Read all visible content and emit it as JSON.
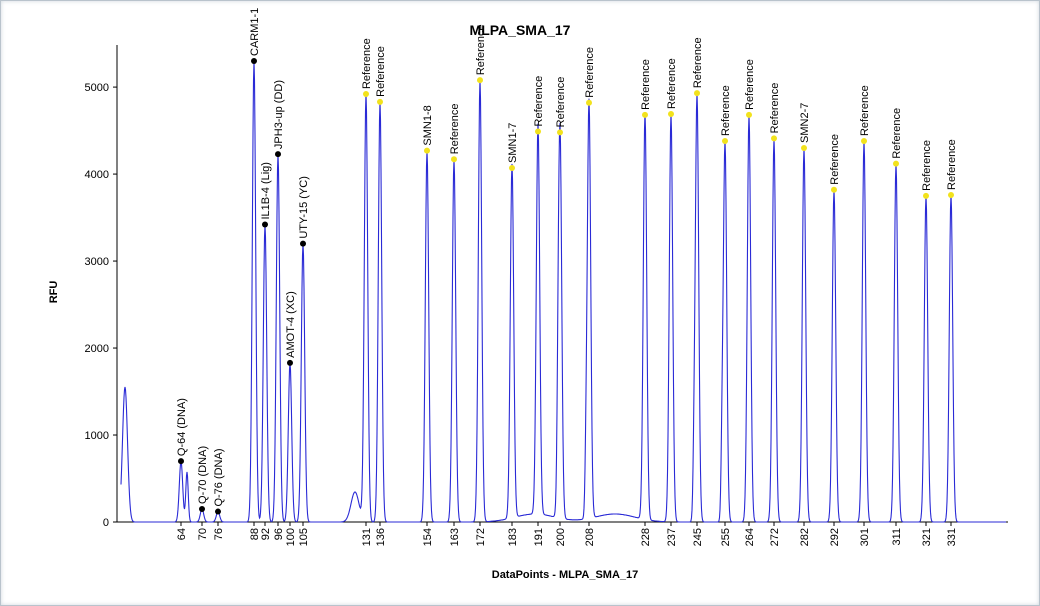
{
  "chart_data": {
    "type": "line",
    "title": "MLPA_SMA_17",
    "xlabel": "DataPoints - MLPA_SMA_17",
    "ylabel": "RFU",
    "ylim": [
      0,
      5300
    ],
    "yticks": [
      0,
      1000,
      2000,
      3000,
      4000,
      5000
    ],
    "grid": false,
    "legend": "none",
    "colors": {
      "trace": "#2a2ad6",
      "sample_marker": "#000000",
      "reference_marker": "#f2e21c",
      "axis": "#000000"
    },
    "peaks": [
      {
        "x_label": "64",
        "label": "Q-64 (DNA)",
        "rfu": 700,
        "marker": "sample"
      },
      {
        "x_label": "70",
        "label": "Q-70 (DNA)",
        "rfu": 150,
        "marker": "sample"
      },
      {
        "x_label": "76",
        "label": "Q-76 (DNA)",
        "rfu": 120,
        "marker": "sample"
      },
      {
        "x_label": "88",
        "label": "CARM1-1",
        "rfu": 5300,
        "marker": "sample"
      },
      {
        "x_label": "92",
        "label": "IL1B-4 (Lig)",
        "rfu": 3420,
        "marker": "sample"
      },
      {
        "x_label": "96",
        "label": "JPH3-up (DD)",
        "rfu": 4230,
        "marker": "sample"
      },
      {
        "x_label": "100",
        "label": "AMOT-4 (XC)",
        "rfu": 1830,
        "marker": "sample"
      },
      {
        "x_label": "105",
        "label": "UTY-15 (YC)",
        "rfu": 3200,
        "marker": "sample"
      },
      {
        "x_label": "131",
        "label": "Reference",
        "rfu": 4920,
        "marker": "reference"
      },
      {
        "x_label": "136",
        "label": "Reference",
        "rfu": 4830,
        "marker": "reference"
      },
      {
        "x_label": "154",
        "label": "SMN1-8",
        "rfu": 4270,
        "marker": "reference"
      },
      {
        "x_label": "163",
        "label": "Reference",
        "rfu": 4170,
        "marker": "reference"
      },
      {
        "x_label": "172",
        "label": "Reference",
        "rfu": 5080,
        "marker": "reference"
      },
      {
        "x_label": "183",
        "label": "SMN1-7",
        "rfu": 4070,
        "marker": "reference"
      },
      {
        "x_label": "191",
        "label": "Reference",
        "rfu": 4490,
        "marker": "reference"
      },
      {
        "x_label": "200",
        "label": "Reference",
        "rfu": 4480,
        "marker": "reference"
      },
      {
        "x_label": "208",
        "label": "Reference",
        "rfu": 4820,
        "marker": "reference"
      },
      {
        "x_label": "228",
        "label": "Reference",
        "rfu": 4680,
        "marker": "reference"
      },
      {
        "x_label": "237",
        "label": "Reference",
        "rfu": 4690,
        "marker": "reference"
      },
      {
        "x_label": "245",
        "label": "Reference",
        "rfu": 4930,
        "marker": "reference"
      },
      {
        "x_label": "255",
        "label": "Reference",
        "rfu": 4380,
        "marker": "reference"
      },
      {
        "x_label": "264",
        "label": "Reference",
        "rfu": 4680,
        "marker": "reference"
      },
      {
        "x_label": "272",
        "label": "Reference",
        "rfu": 4410,
        "marker": "reference"
      },
      {
        "x_label": "282",
        "label": "SMN2-7",
        "rfu": 4300,
        "marker": "reference"
      },
      {
        "x_label": "292",
        "label": "Reference",
        "rfu": 3820,
        "marker": "reference"
      },
      {
        "x_label": "301",
        "label": "Reference",
        "rfu": 4380,
        "marker": "reference"
      },
      {
        "x_label": "311",
        "label": "Reference",
        "rfu": 4120,
        "marker": "reference"
      },
      {
        "x_label": "321",
        "label": "Reference",
        "rfu": 3750,
        "marker": "reference"
      },
      {
        "x_label": "331",
        "label": "Reference",
        "rfu": 3760,
        "marker": "reference"
      }
    ]
  }
}
